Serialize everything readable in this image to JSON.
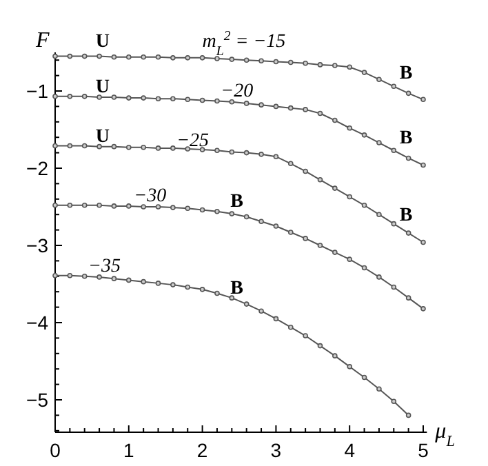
{
  "chart_data": {
    "type": "line",
    "xlabel": "μ$_{L}$",
    "ylabel": "F",
    "x": [
      0,
      0.2,
      0.4,
      0.6,
      0.8,
      1,
      1.2,
      1.4,
      1.6,
      1.8,
      2,
      2.2,
      2.4,
      2.6,
      2.8,
      3,
      3.2,
      3.4,
      3.6,
      3.8,
      4,
      4.2,
      4.4,
      4.6,
      4.8,
      5
    ],
    "series": [
      {
        "color": "#555555",
        "values": [
          -0.55,
          -0.55,
          -0.55,
          -0.55,
          -0.56,
          -0.56,
          -0.56,
          -0.56,
          -0.57,
          -0.57,
          -0.57,
          -0.58,
          -0.59,
          -0.6,
          -0.61,
          -0.62,
          -0.63,
          -0.64,
          -0.66,
          -0.67,
          -0.69,
          -0.76,
          -0.85,
          -0.94,
          -1.03,
          -1.11
        ]
      },
      {
        "color": "#555555",
        "values": [
          -1.07,
          -1.07,
          -1.07,
          -1.08,
          -1.08,
          -1.09,
          -1.09,
          -1.1,
          -1.1,
          -1.11,
          -1.12,
          -1.13,
          -1.14,
          -1.16,
          -1.18,
          -1.2,
          -1.22,
          -1.24,
          -1.29,
          -1.38,
          -1.48,
          -1.57,
          -1.67,
          -1.77,
          -1.87,
          -1.96
        ]
      },
      {
        "color": "#555555",
        "values": [
          -1.71,
          -1.71,
          -1.71,
          -1.72,
          -1.72,
          -1.73,
          -1.73,
          -1.74,
          -1.74,
          -1.75,
          -1.76,
          -1.77,
          -1.79,
          -1.8,
          -1.82,
          -1.85,
          -1.94,
          -2.04,
          -2.15,
          -2.26,
          -2.37,
          -2.48,
          -2.6,
          -2.72,
          -2.84,
          -2.96
        ]
      },
      {
        "color": "#555555",
        "values": [
          -2.48,
          -2.48,
          -2.48,
          -2.48,
          -2.49,
          -2.49,
          -2.5,
          -2.5,
          -2.51,
          -2.52,
          -2.54,
          -2.56,
          -2.59,
          -2.63,
          -2.69,
          -2.75,
          -2.83,
          -2.91,
          -3.0,
          -3.09,
          -3.18,
          -3.29,
          -3.41,
          -3.54,
          -3.68,
          -3.82
        ]
      },
      {
        "color": "#555555",
        "values": [
          -3.39,
          -3.39,
          -3.4,
          -3.41,
          -3.43,
          -3.45,
          -3.47,
          -3.49,
          -3.51,
          -3.54,
          -3.57,
          -3.62,
          -3.68,
          -3.76,
          -3.85,
          -3.95,
          -4.06,
          -4.17,
          -4.3,
          -4.43,
          -4.57,
          -4.71,
          -4.86,
          -5.02,
          -5.2,
          null
        ]
      }
    ],
    "marker": "circle",
    "line_style": "solid",
    "grid": false,
    "xlim": [
      0,
      5.05
    ],
    "ylim": [
      -5.42,
      -0.5
    ],
    "xticks": [
      0,
      {
        "value": 0.2,
        "label": null
      },
      {
        "value": 0.4,
        "label": null
      },
      {
        "value": 0.6,
        "label": null
      },
      {
        "value": 0.8,
        "label": null
      },
      1,
      {
        "value": 1.2,
        "label": null
      },
      {
        "value": 1.4,
        "label": null
      },
      {
        "value": 1.6,
        "label": null
      },
      {
        "value": 1.8,
        "label": null
      },
      2,
      {
        "value": 2.2,
        "label": null
      },
      {
        "value": 2.4,
        "label": null
      },
      {
        "value": 2.6,
        "label": null
      },
      {
        "value": 2.8,
        "label": null
      },
      3,
      {
        "value": 3.2,
        "label": null
      },
      {
        "value": 3.4,
        "label": null
      },
      {
        "value": 3.6,
        "label": null
      },
      {
        "value": 3.8,
        "label": null
      },
      4,
      {
        "value": 4.2,
        "label": null
      },
      {
        "value": 4.4,
        "label": null
      },
      {
        "value": 4.6,
        "label": null
      },
      {
        "value": 4.8,
        "label": null
      },
      5
    ],
    "yticks": [
      {
        "value": -5.4,
        "label": null
      },
      {
        "value": -5.2,
        "label": null
      },
      {
        "value": -5,
        "label": "−5"
      },
      {
        "value": -4.8,
        "label": null
      },
      {
        "value": -4.6,
        "label": null
      },
      {
        "value": -4.4,
        "label": null
      },
      {
        "value": -4.2,
        "label": null
      },
      {
        "value": -4,
        "label": "−4"
      },
      {
        "value": -3.8,
        "label": null
      },
      {
        "value": -3.6,
        "label": null
      },
      {
        "value": -3.4,
        "label": null
      },
      {
        "value": -3.2,
        "label": null
      },
      {
        "value": -3,
        "label": "−3"
      },
      {
        "value": -2.8,
        "label": null
      },
      {
        "value": -2.6,
        "label": null
      },
      {
        "value": -2.4,
        "label": null
      },
      {
        "value": -2.2,
        "label": null
      },
      {
        "value": -2,
        "label": "−2"
      },
      {
        "value": -1.8,
        "label": null
      },
      {
        "value": -1.6,
        "label": null
      },
      {
        "value": -1.4,
        "label": null
      },
      {
        "value": -1.2,
        "label": null
      },
      {
        "value": -1,
        "label": "−1"
      },
      {
        "value": -0.8,
        "label": null
      },
      {
        "value": -0.6,
        "label": null
      }
    ],
    "annotations": [
      {
        "text": "m$_{L}$$^{2}$ = −15",
        "x": 2.0,
        "y": -0.5
      },
      {
        "text": "−20",
        "x": 2.25,
        "y": -1.14
      },
      {
        "text": "−25",
        "x": 1.65,
        "y": -1.79
      },
      {
        "text": "−30",
        "x": 1.07,
        "y": -2.5
      },
      {
        "text": "−35",
        "x": 0.45,
        "y": -3.41
      },
      {
        "text": "U",
        "x": 0.55,
        "y": -0.5
      },
      {
        "text": "U",
        "x": 0.55,
        "y": -1.09
      },
      {
        "text": "U",
        "x": 0.55,
        "y": -1.73
      },
      {
        "text": "B",
        "x": 4.68,
        "y": -0.91
      },
      {
        "text": "B",
        "x": 4.68,
        "y": -1.75
      },
      {
        "text": "B",
        "x": 4.68,
        "y": -2.75
      },
      {
        "text": "B",
        "x": 2.38,
        "y": -2.57
      },
      {
        "text": "B",
        "x": 2.38,
        "y": -3.7
      }
    ]
  }
}
